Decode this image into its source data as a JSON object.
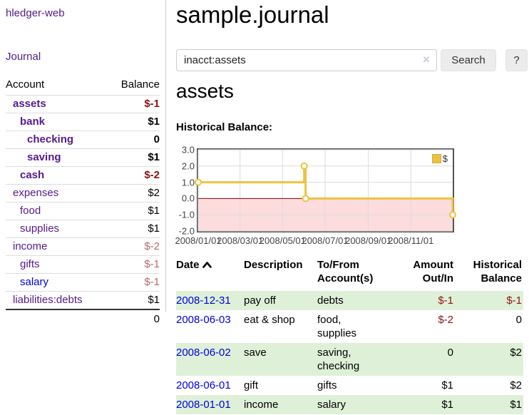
{
  "app": {
    "brand": "hledger-web"
  },
  "nav": {
    "journal": "Journal"
  },
  "sidebar": {
    "account_header": "Account",
    "balance_header": "Balance",
    "accounts": [
      {
        "name": "assets",
        "balance": "$-1"
      },
      {
        "name": "bank",
        "balance": "$1"
      },
      {
        "name": "checking",
        "balance": "0"
      },
      {
        "name": "saving",
        "balance": "$1"
      },
      {
        "name": "cash",
        "balance": "$-2"
      },
      {
        "name": "expenses",
        "balance": "$2"
      },
      {
        "name": "food",
        "balance": "$1"
      },
      {
        "name": "supplies",
        "balance": "$1"
      },
      {
        "name": "income",
        "balance": "$-2"
      },
      {
        "name": "gifts",
        "balance": "$-1"
      },
      {
        "name": "salary",
        "balance": "$-1"
      },
      {
        "name": "liabilities:debts",
        "balance": "$1"
      }
    ],
    "total": "0"
  },
  "header": {
    "title": "sample.journal"
  },
  "search": {
    "value": "inacct:assets",
    "clear": "×",
    "search_label": "Search",
    "help_label": "?"
  },
  "page": {
    "heading": "assets",
    "chart_title": "Historical Balance:"
  },
  "chart_data": {
    "type": "line",
    "step": true,
    "title": "Historical Balance:",
    "legend_position": "top-right",
    "series": [
      {
        "name": "$",
        "color": "#edc240",
        "points": [
          [
            "2008-01-01",
            1
          ],
          [
            "2008-06-01",
            2
          ],
          [
            "2008-06-03",
            0
          ],
          [
            "2008-12-31",
            -1
          ]
        ]
      }
    ],
    "x_ticks": [
      "2008/01/01",
      "2008/03/01",
      "2008/05/01",
      "2008/07/01",
      "2008/09/01",
      "2008/11/01"
    ],
    "y_ticks": [
      "3.0",
      "2.0",
      "1.0",
      "0.0",
      "-1.0",
      "-2.0"
    ],
    "ylim": [
      -2,
      3
    ],
    "xlim": [
      "2008-01-01",
      "2008-12-31"
    ],
    "grid": true,
    "grid_color": "#dcdcdc",
    "negative_region_color": "#fcdcdc",
    "zero_line_color": "#8b0000",
    "border_color": "#545454"
  },
  "register": {
    "columns": [
      "Date",
      "Description",
      "To/From Account(s)",
      "Amount Out/In",
      "Historical Balance"
    ],
    "sort": "Date ascending",
    "rows": [
      {
        "date": "2008-12-31",
        "description": "pay off",
        "accounts": "debts",
        "amount": "$-1",
        "balance": "$-1"
      },
      {
        "date": "2008-06-03",
        "description": "eat & shop",
        "accounts": "food, supplies",
        "amount": "$-2",
        "balance": "0"
      },
      {
        "date": "2008-06-02",
        "description": "save",
        "accounts": "saving, checking",
        "amount": "0",
        "balance": "$2"
      },
      {
        "date": "2008-06-01",
        "description": "gift",
        "accounts": "gifts",
        "amount": "$1",
        "balance": "$2"
      },
      {
        "date": "2008-01-01",
        "description": "income",
        "accounts": "salary",
        "amount": "$1",
        "balance": "$1"
      }
    ]
  },
  "colors": {
    "purple": "#551a8b",
    "blue": "#0000e0",
    "neg-strong": "#8b1414",
    "neg-soft": "#b56a6a",
    "stripe": "#dff0d8",
    "gold": "#edc240"
  }
}
